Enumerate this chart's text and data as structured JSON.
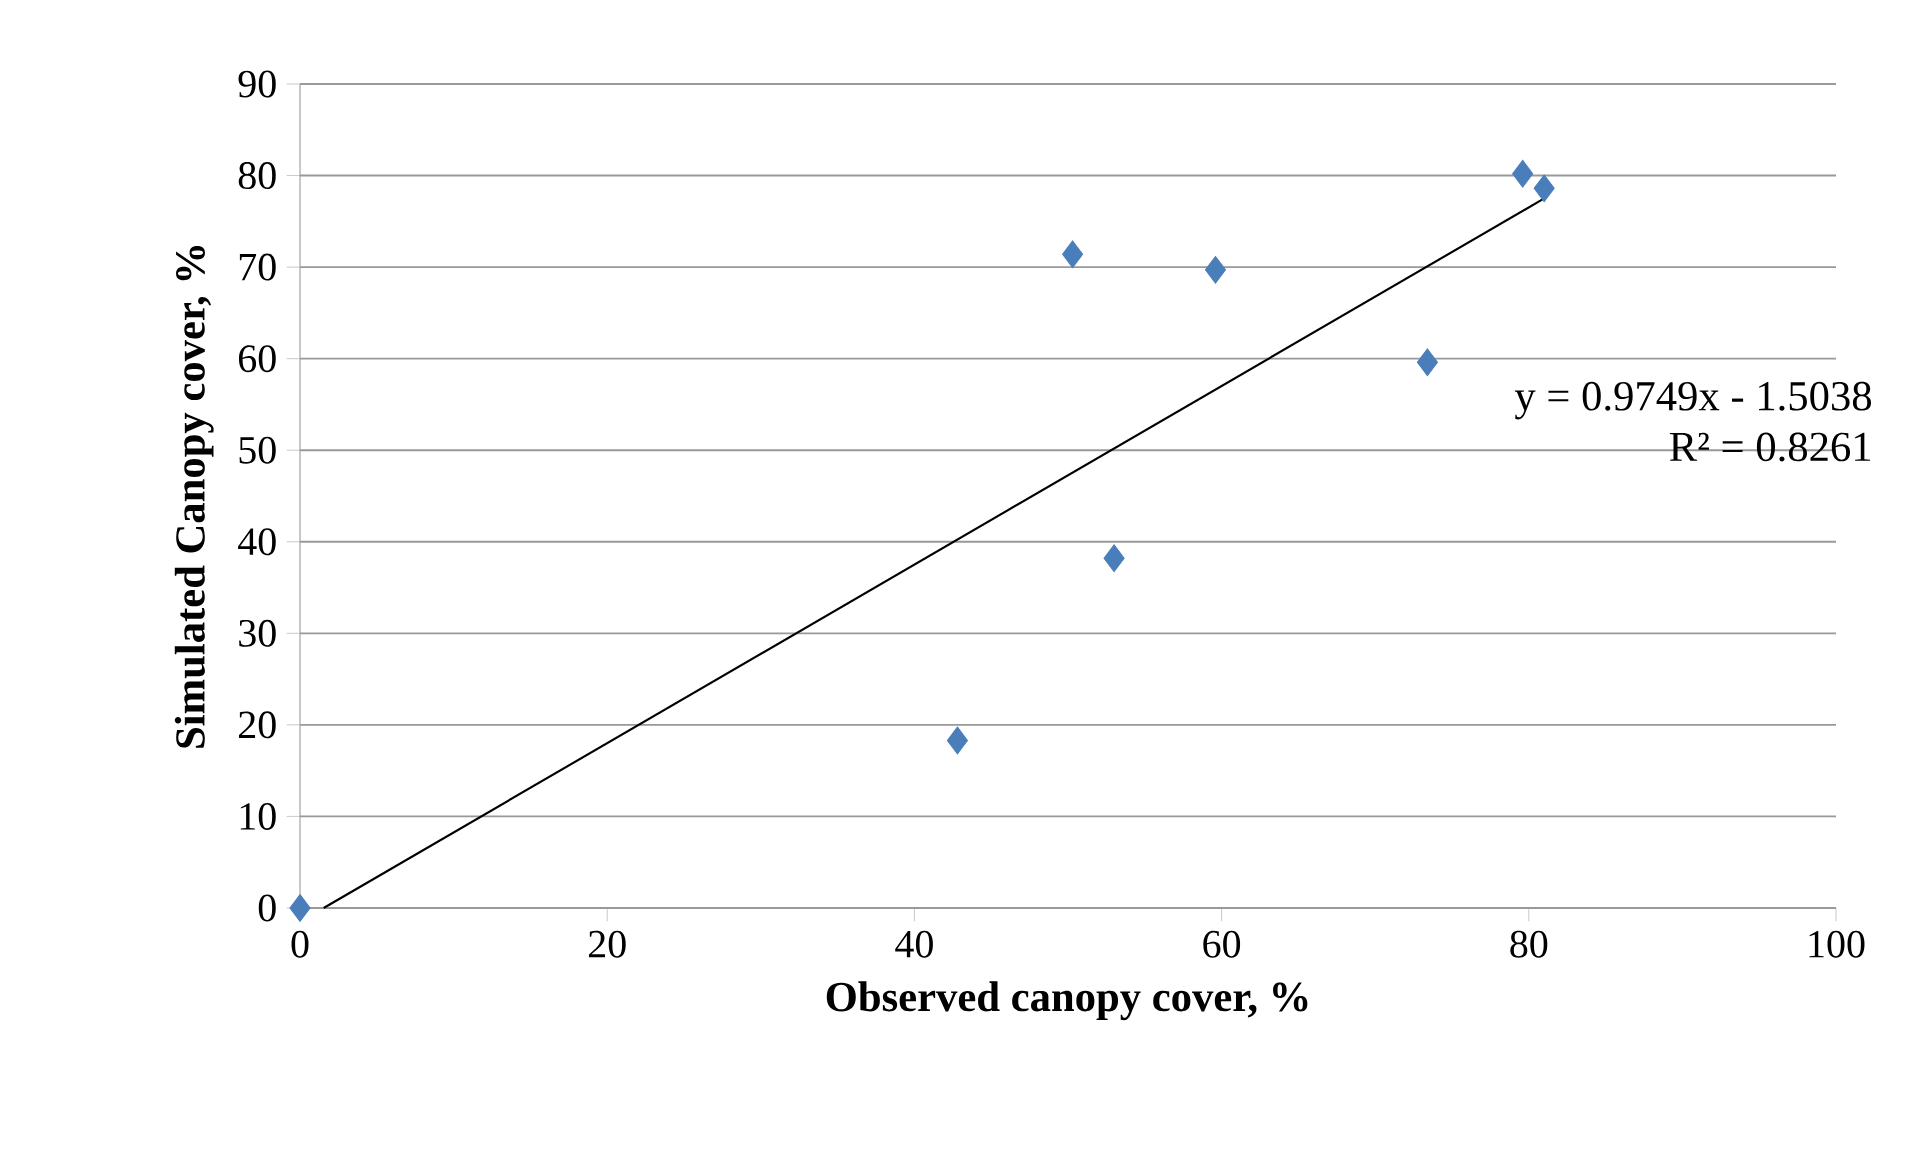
{
  "chart_data": {
    "type": "scatter",
    "xlabel": "Observed  canopy cover, %",
    "ylabel": "Simulated Canopy cover, %",
    "series": [
      {
        "color": "#4a7ebb",
        "marker": "diamond",
        "x": [
          0,
          42.8,
          50.3,
          53.0,
          59.6,
          73.4,
          79.6,
          81.0
        ],
        "values": [
          0,
          18.3,
          71.4,
          38.2,
          69.7,
          59.6,
          80.2,
          78.6
        ]
      },
      {
        "type": "line",
        "color": "#000000",
        "marker": "none",
        "x": [
          1.54,
          81.0
        ],
        "values": [
          0,
          77.5
        ]
      }
    ],
    "annotations": [
      "y = 0.9749x - 1.5038",
      "R² = 0.8261"
    ],
    "xlim": [
      0,
      100
    ],
    "xticks": [
      0,
      20,
      40,
      60,
      80,
      100
    ],
    "ylim": [
      0,
      90
    ],
    "yticks": [
      0,
      10,
      20,
      30,
      40,
      50,
      60,
      70,
      80,
      90
    ],
    "grid": "y"
  }
}
